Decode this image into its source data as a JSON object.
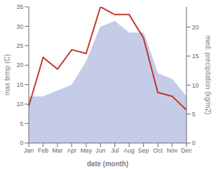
{
  "chart_data": {
    "type": "line",
    "xlabel": "date (month)",
    "ylabel": "max temp (C)",
    "y2label": "med. precipitation (kg/m2)",
    "categories": [
      "Jan",
      "Feb",
      "Mar",
      "Apr",
      "May",
      "Jun",
      "Jul",
      "Aug",
      "Sep",
      "Oct",
      "Nov",
      "Dec"
    ],
    "series": [
      {
        "type": "area",
        "axis": "y2",
        "color": "#c5cce8",
        "values": [
          8,
          8,
          9,
          10,
          14,
          20,
          21,
          19,
          19,
          12,
          11,
          8
        ]
      },
      {
        "type": "line",
        "axis": "y",
        "color": "#c0392b",
        "values": [
          9.5,
          22,
          19,
          24,
          23,
          35,
          33,
          33,
          27,
          13,
          12,
          8.5
        ]
      }
    ],
    "ylim": [
      0,
      35
    ],
    "yticks": [
      0,
      5,
      10,
      15,
      20,
      25,
      30,
      35
    ],
    "y2lim": [
      0,
      23.5
    ],
    "y2ticks": [
      0,
      5,
      10,
      15,
      20
    ],
    "grid": false
  }
}
